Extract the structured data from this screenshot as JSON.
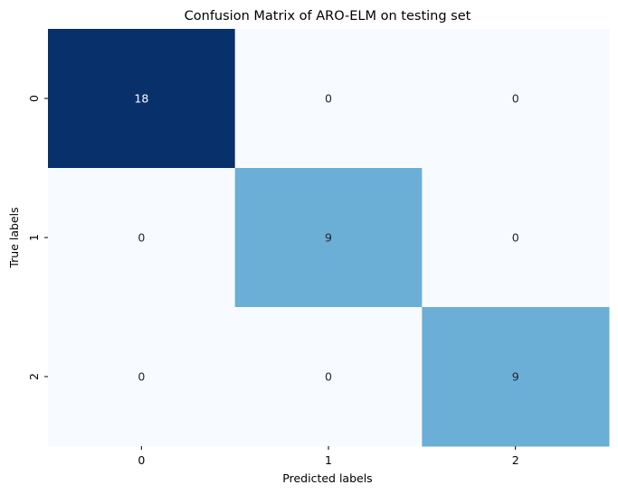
{
  "chart_data": {
    "type": "heatmap",
    "title": "Confusion Matrix of ARO-ELM on testing set",
    "xlabel": "Predicted labels",
    "ylabel": "True labels",
    "x_categories": [
      "0",
      "1",
      "2"
    ],
    "y_categories": [
      "0",
      "1",
      "2"
    ],
    "values": [
      [
        18,
        0,
        0
      ],
      [
        0,
        9,
        0
      ],
      [
        0,
        0,
        9
      ]
    ],
    "colormap": "Blues",
    "colorbar": false,
    "colors": {
      "max": "#08306b",
      "mid": "#6baed6",
      "min": "#f7fbff",
      "text_dark": "#262626",
      "text_light": "#ffffff"
    }
  }
}
